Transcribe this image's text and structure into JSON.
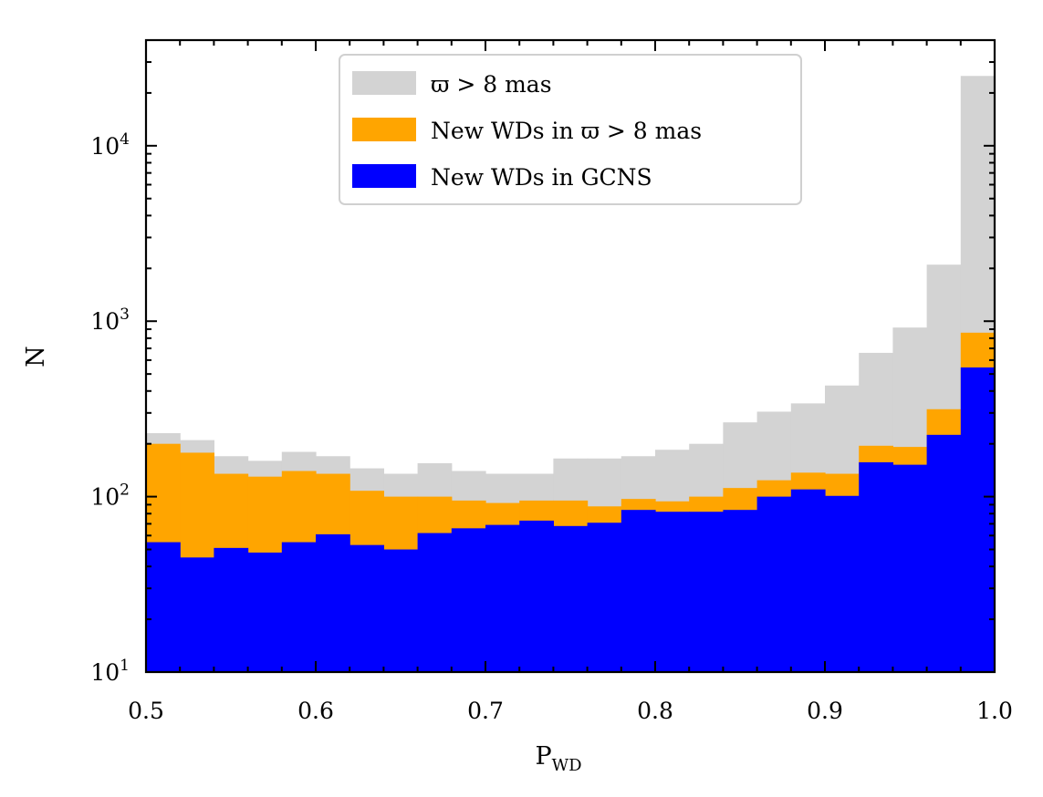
{
  "chart_data": {
    "type": "bar",
    "subtype": "stacked-step-histogram",
    "xlabel": "P",
    "xlabel_sub": "WD",
    "ylabel": "N",
    "xscale": "linear",
    "yscale": "log",
    "xlim": [
      0.5,
      1.0
    ],
    "ylim": [
      10,
      40000
    ],
    "bin_edges": [
      0.5,
      0.52,
      0.54,
      0.56,
      0.58,
      0.6,
      0.62,
      0.64,
      0.66,
      0.68,
      0.7,
      0.72,
      0.74,
      0.76,
      0.78,
      0.8,
      0.82,
      0.84,
      0.86,
      0.88,
      0.9,
      0.92,
      0.94,
      0.96,
      0.98,
      1.0
    ],
    "x_ticks": [
      {
        "value": 0.5,
        "label": "0.5"
      },
      {
        "value": 0.6,
        "label": "0.6"
      },
      {
        "value": 0.7,
        "label": "0.7"
      },
      {
        "value": 0.8,
        "label": "0.8"
      },
      {
        "value": 0.9,
        "label": "0.9"
      },
      {
        "value": 1.0,
        "label": "1.0"
      }
    ],
    "y_ticks": [
      {
        "value": 10,
        "base": "10",
        "exp": "1"
      },
      {
        "value": 100,
        "base": "10",
        "exp": "2"
      },
      {
        "value": 1000,
        "base": "10",
        "exp": "3"
      },
      {
        "value": 10000,
        "base": "10",
        "exp": "4"
      }
    ],
    "series": [
      {
        "name": "ϖ > 8 mas",
        "color": "#d3d3d3",
        "values": [
          230,
          210,
          170,
          160,
          180,
          170,
          145,
          135,
          155,
          140,
          135,
          135,
          165,
          165,
          170,
          185,
          200,
          265,
          305,
          340,
          430,
          660,
          920,
          2100,
          25000
        ]
      },
      {
        "name": "New WDs in ϖ > 8 mas",
        "color": "#ffa500",
        "values": [
          200,
          178,
          135,
          130,
          140,
          135,
          108,
          100,
          100,
          95,
          92,
          95,
          95,
          88,
          97,
          94,
          100,
          112,
          124,
          137,
          135,
          195,
          192,
          315,
          860
        ]
      },
      {
        "name": "New WDs in GCNS",
        "color": "#0000ff",
        "values": [
          55,
          45,
          51,
          48,
          55,
          61,
          53,
          50,
          62,
          66,
          69,
          73,
          68,
          71,
          84,
          82,
          82,
          84,
          100,
          110,
          101,
          157,
          152,
          225,
          545
        ]
      }
    ],
    "legend": {
      "position": "top-center",
      "entries": [
        {
          "prefix": "ϖ > 8 mas",
          "color": "#d3d3d3"
        },
        {
          "prefix": "New WDs in ϖ > 8 mas",
          "color": "#ffa500"
        },
        {
          "prefix": "New WDs in GCNS",
          "color": "#0000ff"
        }
      ]
    }
  }
}
